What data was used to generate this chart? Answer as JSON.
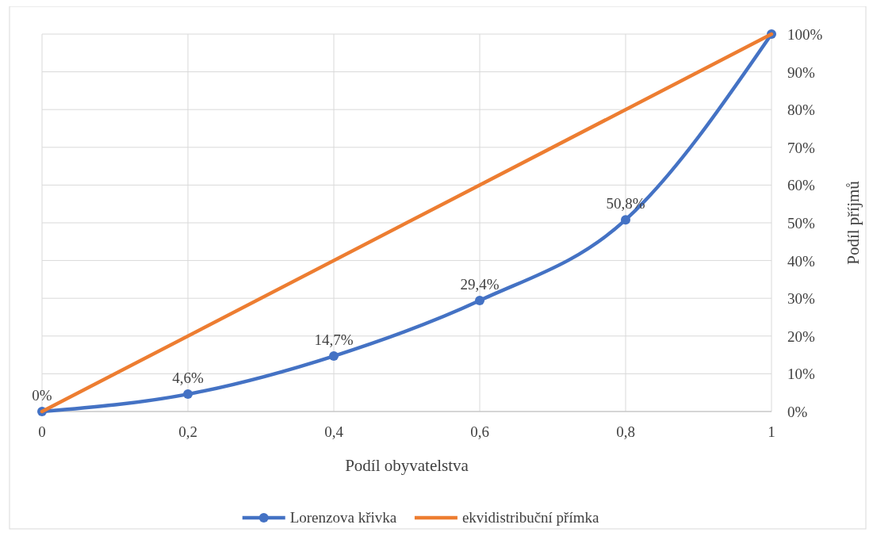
{
  "chart_data": {
    "type": "line",
    "xlabel": "Podíl obyvatelstva",
    "ylabel": "Podíl příjmů",
    "xlim": [
      0,
      1
    ],
    "xticks": [
      0,
      {
        "value": 0.2,
        "label": "0,2"
      },
      {
        "value": 0.4,
        "label": "0,4"
      },
      {
        "value": 0.6,
        "label": "0,6"
      },
      {
        "value": 0.8,
        "label": "0,8"
      },
      1
    ],
    "ylim": [
      0,
      100
    ],
    "yticks": [
      {
        "value": 0,
        "label": "0%"
      },
      {
        "value": 10,
        "label": "10%"
      },
      {
        "value": 20,
        "label": "20%"
      },
      {
        "value": 30,
        "label": "30%"
      },
      {
        "value": 40,
        "label": "40%"
      },
      {
        "value": 50,
        "label": "50%"
      },
      {
        "value": 60,
        "label": "60%"
      },
      {
        "value": 70,
        "label": "70%"
      },
      {
        "value": 80,
        "label": "80%"
      },
      {
        "value": 90,
        "label": "90%"
      },
      {
        "value": 100,
        "label": "100%"
      }
    ],
    "grid": true,
    "legend": "bottom",
    "line_style": "solid",
    "series": [
      {
        "name": "Lorenzova křivka",
        "color": "#4472c4",
        "marker": "circle",
        "x": [
          0,
          0.2,
          0.4,
          0.6,
          0.8,
          1
        ],
        "values": [
          0,
          4.6,
          14.7,
          29.4,
          50.8,
          100
        ],
        "value_labels": [
          "0%",
          "4,6%",
          "14,7%",
          "29,4%",
          "50,8%",
          null
        ]
      },
      {
        "name": "ekvidistribuční přímka",
        "color": "#ed7d31",
        "marker": "none",
        "x": [
          0,
          1
        ],
        "values": [
          0,
          100
        ]
      }
    ]
  }
}
